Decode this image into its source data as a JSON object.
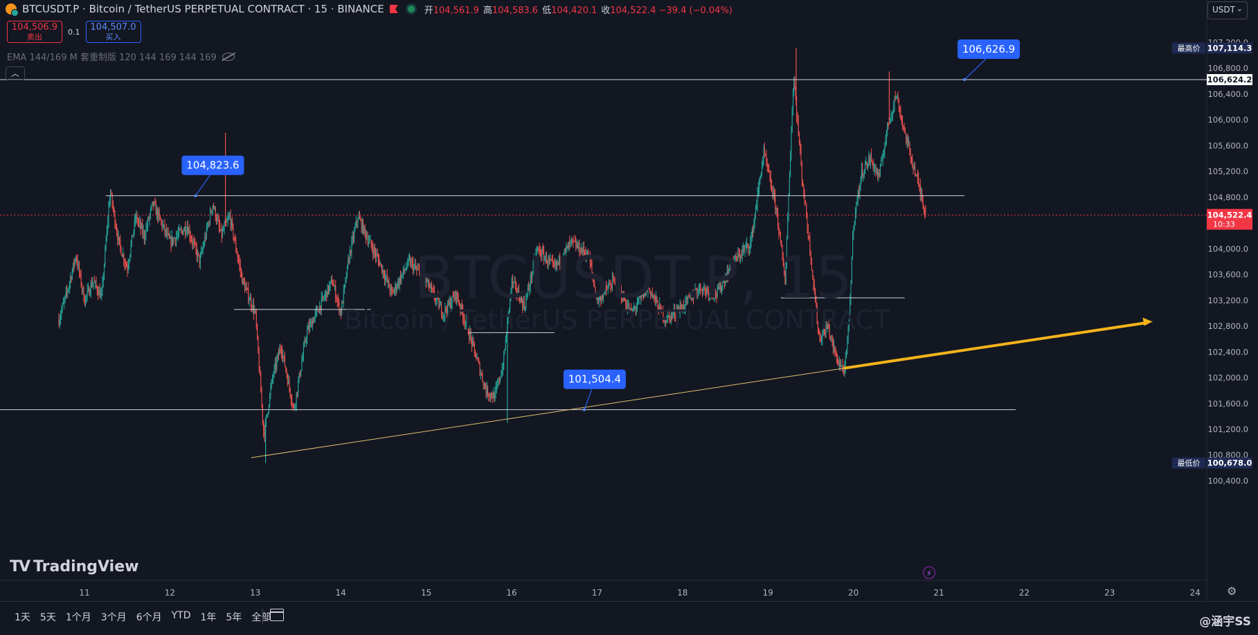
{
  "header": {
    "title": "BTCUSDT.P · Bitcoin / TetherUS PERPETUAL CONTRACT · 15 · BINANCE",
    "ohlc": [
      {
        "label": "开",
        "value": "104,561.9"
      },
      {
        "label": "高",
        "value": "104,583.6"
      },
      {
        "label": "低",
        "value": "104,420.1"
      },
      {
        "label": "收",
        "value": "104,522.4 −39.4 (−0.04%)"
      }
    ]
  },
  "trade": {
    "sell_price": "104,506.9",
    "sell_label": "卖出",
    "spread": "0.1",
    "buy_price": "104,507.0",
    "buy_label": "买入"
  },
  "indicator": "EMA 144/169 M 套重制版 120 144 169 144 169",
  "currency": "USDT",
  "watermark": {
    "symbol": "BTCUSDT.P, 15",
    "name": "Bitcoin / TetherUS PERPETUAL CONTRACT"
  },
  "logo": "TradingView",
  "ranges": [
    "1天",
    "5天",
    "1个月",
    "3个月",
    "6个月",
    "YTD",
    "1年",
    "5年",
    "全部"
  ],
  "credit": "@涵宇SS",
  "colors": {
    "bg": "#131722",
    "up": "#26a69a",
    "down": "#ef5350",
    "trend": "#f5b41a",
    "callout": "#2962ff",
    "price_tag": "#f23645"
  },
  "chart_data": {
    "type": "candlestick",
    "y_ticks": [
      "107,200.0",
      "106,800.0",
      "106,400.0",
      "106,000.0",
      "105,600.0",
      "105,200.0",
      "104,800.0",
      "104,400.0",
      "104,000.0",
      "103,600.0",
      "103,200.0",
      "102,800.0",
      "102,400.0",
      "102,000.0",
      "101,600.0",
      "101,200.0",
      "100,800.0",
      "100,400.0"
    ],
    "x_ticks": [
      "11",
      "12",
      "13",
      "14",
      "15",
      "16",
      "17",
      "18",
      "19",
      "20",
      "21",
      "22",
      "23",
      "24"
    ],
    "ylim": [
      100300,
      107250
    ],
    "high_tag": {
      "label": "最高价",
      "value": "107,114.3"
    },
    "low_tag": {
      "label": "最低价",
      "value": "100,678.0"
    },
    "last_price": {
      "value": "104,522.4",
      "countdown": "10:33"
    },
    "line_tag": "106,624.2",
    "callouts": [
      "106,626.9",
      "104,823.6",
      "101,504.4"
    ],
    "path": [
      [
        10.7,
        102900
      ],
      [
        10.8,
        103350
      ],
      [
        10.9,
        103900
      ],
      [
        11.0,
        103200
      ],
      [
        11.1,
        103500
      ],
      [
        11.2,
        103250
      ],
      [
        11.3,
        104900
      ],
      [
        11.4,
        104100
      ],
      [
        11.5,
        103700
      ],
      [
        11.6,
        104500
      ],
      [
        11.7,
        104200
      ],
      [
        11.8,
        104700
      ],
      [
        12.0,
        104100
      ],
      [
        12.2,
        104350
      ],
      [
        12.35,
        103800
      ],
      [
        12.5,
        104700
      ],
      [
        12.6,
        104200
      ],
      [
        12.7,
        104500
      ],
      [
        12.85,
        103500
      ],
      [
        13.0,
        103000
      ],
      [
        13.1,
        101100
      ],
      [
        13.2,
        102000
      ],
      [
        13.3,
        102500
      ],
      [
        13.45,
        101500
      ],
      [
        13.6,
        102700
      ],
      [
        13.75,
        103100
      ],
      [
        13.9,
        103500
      ],
      [
        14.0,
        103000
      ],
      [
        14.1,
        103900
      ],
      [
        14.2,
        104500
      ],
      [
        14.3,
        104200
      ],
      [
        14.45,
        103800
      ],
      [
        14.6,
        103300
      ],
      [
        14.8,
        103800
      ],
      [
        15.0,
        103500
      ],
      [
        15.2,
        103000
      ],
      [
        15.35,
        103300
      ],
      [
        15.5,
        102700
      ],
      [
        15.7,
        101800
      ],
      [
        15.8,
        101700
      ],
      [
        15.9,
        102200
      ],
      [
        16.0,
        103500
      ],
      [
        16.15,
        103100
      ],
      [
        16.3,
        104000
      ],
      [
        16.5,
        103700
      ],
      [
        16.7,
        104100
      ],
      [
        16.9,
        103900
      ],
      [
        17.0,
        103200
      ],
      [
        17.2,
        103500
      ],
      [
        17.4,
        103000
      ],
      [
        17.6,
        103400
      ],
      [
        17.8,
        102900
      ],
      [
        18.0,
        103100
      ],
      [
        18.2,
        103400
      ],
      [
        18.4,
        103300
      ],
      [
        18.6,
        103800
      ],
      [
        18.8,
        104100
      ],
      [
        18.95,
        105500
      ],
      [
        19.1,
        104600
      ],
      [
        19.2,
        103500
      ],
      [
        19.3,
        106700
      ],
      [
        19.4,
        105100
      ],
      [
        19.5,
        103900
      ],
      [
        19.6,
        102600
      ],
      [
        19.7,
        102800
      ],
      [
        19.8,
        102300
      ],
      [
        19.9,
        102100
      ],
      [
        19.95,
        102900
      ],
      [
        20.0,
        104400
      ],
      [
        20.1,
        105200
      ],
      [
        20.2,
        105400
      ],
      [
        20.3,
        105100
      ],
      [
        20.4,
        105900
      ],
      [
        20.5,
        106400
      ],
      [
        20.6,
        105800
      ],
      [
        20.7,
        105300
      ],
      [
        20.8,
        104800
      ],
      [
        20.85,
        104522
      ]
    ],
    "spike_highs": [
      [
        12.65,
        105800
      ],
      [
        19.33,
        107114
      ],
      [
        20.42,
        106750
      ]
    ],
    "spike_lows": [
      [
        13.12,
        100678
      ],
      [
        15.95,
        101300
      ]
    ],
    "h_lines": [
      {
        "y": 106624.2,
        "x0": 9.6,
        "x1": 24.2
      },
      {
        "y": 104823.6,
        "x0": 11.25,
        "x1": 21.3
      },
      {
        "y": 103060,
        "x0": 12.75,
        "x1": 14.35
      },
      {
        "y": 102700,
        "x0": 15.5,
        "x1": 16.5
      },
      {
        "y": 103240,
        "x0": 19.15,
        "x1": 20.6
      },
      {
        "y": 101504.4,
        "x0": 9.6,
        "x1": 21.9
      }
    ],
    "support_line": [
      [
        12.95,
        100760
      ],
      [
        23.5,
        102870
      ]
    ],
    "callout_points": [
      {
        "label": "106,626.9",
        "x": 21.3,
        "y": 106624
      },
      {
        "label": "104,823.6",
        "x": 12.3,
        "y": 104823
      },
      {
        "label": "101,504.4",
        "x": 16.85,
        "y": 101504
      }
    ]
  }
}
